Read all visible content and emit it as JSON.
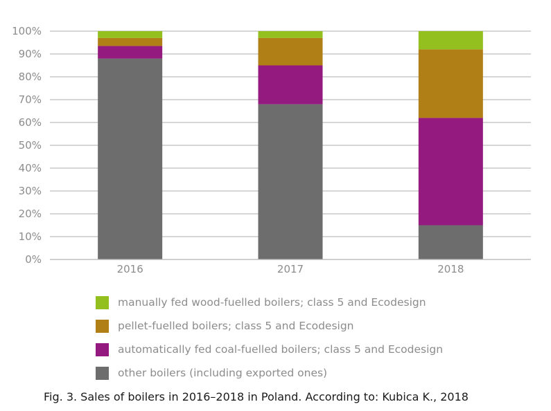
{
  "chart_data": {
    "type": "bar",
    "stacked": true,
    "categories": [
      "2016",
      "2017",
      "2018"
    ],
    "series": [
      {
        "name": "other boilers (including exported ones)",
        "color": "#6d6d6d",
        "values": [
          88,
          68,
          15
        ]
      },
      {
        "name": "automatically fed coal-fuelled boilers; class 5 and Ecodesign",
        "color": "#951a80",
        "values": [
          5.5,
          17,
          47
        ]
      },
      {
        "name": "pellet-fuelled boilers; class 5 and Ecodesign",
        "color": "#b07f16",
        "values": [
          3.5,
          12,
          30
        ]
      },
      {
        "name": "manually fed wood-fuelled boilers; class 5 and Ecodesign",
        "color": "#93c01f",
        "values": [
          3,
          3,
          8
        ]
      }
    ],
    "y_ticks": [
      "0%",
      "10%",
      "20%",
      "30%",
      "40%",
      "50%",
      "60%",
      "70%",
      "80%",
      "90%",
      "100%"
    ],
    "ylim": [
      0,
      100
    ],
    "grid": true,
    "legend_position": "bottom"
  },
  "legend_items": [
    {
      "label": "manually fed wood-fuelled boilers; class 5 and Ecodesign",
      "color": "#93c01f"
    },
    {
      "label": "pellet-fuelled boilers; class 5 and Ecodesign",
      "color": "#b07f16"
    },
    {
      "label": "automatically fed coal-fuelled boilers; class 5 and Ecodesign",
      "color": "#951a80"
    },
    {
      "label": "other boilers (including exported ones)",
      "color": "#6d6d6d"
    }
  ],
  "caption": "Fig. 3. Sales of boilers in 2016–2018 in Poland. According to: Kubica K., 2018"
}
